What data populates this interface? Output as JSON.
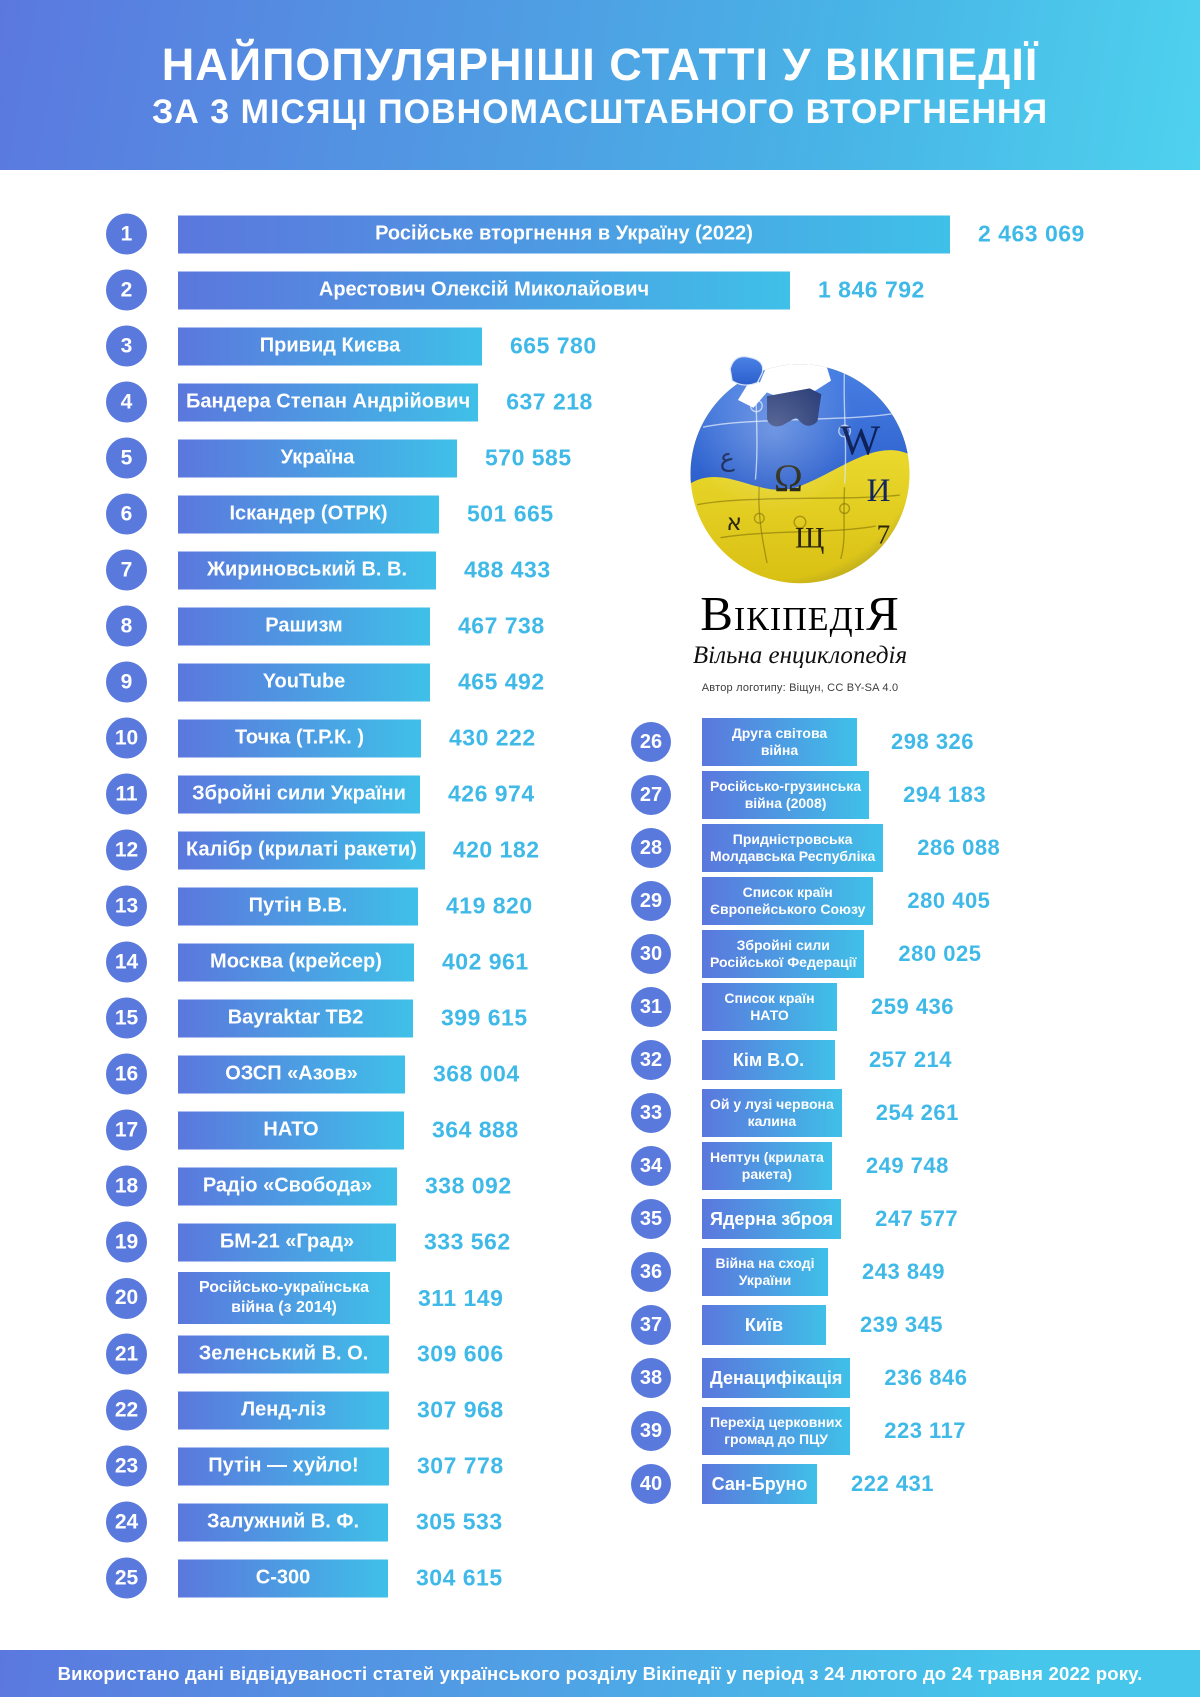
{
  "header": {
    "title_line1": "НАЙПОПУЛЯРНІШІ СТАТТІ У ВІКІПЕДІЇ",
    "title_line2": "ЗА 3 МІСЯЦІ ПОВНОМАСШТАБНОГО ВТОРГНЕННЯ"
  },
  "logo": {
    "wordmark": "ВікіпедіЯ",
    "subtitle": "Вільна енциклопедія",
    "attribution": "Автор логотипу:  Віщун, CC BY-SA 4.0",
    "globe_glyphs": [
      "W",
      "И",
      "Ω",
      "ع",
      "א",
      "Щ",
      "7"
    ],
    "globe_colors": {
      "blue_top": "#3b6ed8",
      "yellow_bottom": "#f0dc2e"
    }
  },
  "colors": {
    "gradient_start": "#5b78df",
    "gradient_end": "#45c6ea",
    "bar_start": "#5b77dd",
    "bar_end": "#3fc0e8",
    "rank_badge": "#5a79dd",
    "value_text": "#3fb9e8",
    "background": "#ffffff"
  },
  "footer": {
    "note": "Використано дані відвідуваності статей українського розділу Вікіпедії у період з 24 лютого до 24 травня 2022 року."
  },
  "chart_data": {
    "type": "bar",
    "title": "НАЙПОПУЛЯРНІШІ СТАТТІ У ВІКІПЕДІЇ ЗА 3 МІСЯЦІ ПОВНОМАСШТАБНОГО ВТОРГНЕННЯ",
    "orientation": "horizontal",
    "value_label_position": "right-of-bar",
    "columns": {
      "left_ranks": [
        1,
        25
      ],
      "right_ranks": [
        26,
        40
      ]
    },
    "items": [
      {
        "rank": 1,
        "label": "Російське вторгнення в Україну (2022)",
        "value": 2463069
      },
      {
        "rank": 2,
        "label": "Арестович Олексій Миколайович",
        "value": 1846792
      },
      {
        "rank": 3,
        "label": "Привид Києва",
        "value": 665780
      },
      {
        "rank": 4,
        "label": "Бандера Степан Андрійович",
        "value": 637218
      },
      {
        "rank": 5,
        "label": "Україна",
        "value": 570585
      },
      {
        "rank": 6,
        "label": "Іскандер (ОТРК)",
        "value": 501665
      },
      {
        "rank": 7,
        "label": "Жириновський В. В.",
        "value": 488433
      },
      {
        "rank": 8,
        "label": "Рашизм",
        "value": 467738
      },
      {
        "rank": 9,
        "label": "YouTube",
        "value": 465492
      },
      {
        "rank": 10,
        "label": "Точка (Т.Р.К. )",
        "value": 430222
      },
      {
        "rank": 11,
        "label": "Збройні сили України",
        "value": 426974
      },
      {
        "rank": 12,
        "label": "Калібр (крилаті ракети)",
        "value": 420182
      },
      {
        "rank": 13,
        "label": "Путін В.В.",
        "value": 419820
      },
      {
        "rank": 14,
        "label": "Москва (крейсер)",
        "value": 402961
      },
      {
        "rank": 15,
        "label": "Bayraktar TB2",
        "value": 399615
      },
      {
        "rank": 16,
        "label": "ОЗСП «Азов»",
        "value": 368004
      },
      {
        "rank": 17,
        "label": "НАТО",
        "value": 364888
      },
      {
        "rank": 18,
        "label": "Радіо «Свобода»",
        "value": 338092
      },
      {
        "rank": 19,
        "label": "БМ-21 «Град»",
        "value": 333562
      },
      {
        "rank": 20,
        "label": "Російсько-українська\nвійна (з 2014)",
        "value": 311149
      },
      {
        "rank": 21,
        "label": "Зеленський В. О.",
        "value": 309606
      },
      {
        "rank": 22,
        "label": "Ленд-ліз",
        "value": 307968
      },
      {
        "rank": 23,
        "label": "Путін — хуйло!",
        "value": 307778
      },
      {
        "rank": 24,
        "label": "Залужний В. Ф.",
        "value": 305533
      },
      {
        "rank": 25,
        "label": "С-300",
        "value": 304615
      },
      {
        "rank": 26,
        "label": "Друга світова\nвійна",
        "value": 298326
      },
      {
        "rank": 27,
        "label": "Російсько-грузинська\nвійна (2008)",
        "value": 294183
      },
      {
        "rank": 28,
        "label": "Придністровська\nМолдавська Республіка",
        "value": 286088
      },
      {
        "rank": 29,
        "label": "Список країн\nЄвропейського Союзу",
        "value": 280405
      },
      {
        "rank": 30,
        "label": "Збройні сили\nРосійської Федерації",
        "value": 280025
      },
      {
        "rank": 31,
        "label": "Список країн\nНАТО",
        "value": 259436
      },
      {
        "rank": 32,
        "label": "Кім В.О.",
        "value": 257214
      },
      {
        "rank": 33,
        "label": "Ой у лузі червона\nкалина",
        "value": 254261
      },
      {
        "rank": 34,
        "label": "Нептун (крилата\nракета)",
        "value": 249748
      },
      {
        "rank": 35,
        "label": "Ядерна зброя",
        "value": 247577
      },
      {
        "rank": 36,
        "label": "Війна на сході\nУкраїни",
        "value": 243849
      },
      {
        "rank": 37,
        "label": "Київ",
        "value": 239345
      },
      {
        "rank": 38,
        "label": "Денацифікація",
        "value": 236846
      },
      {
        "rank": 39,
        "label": "Перехід церковних\nгромад до ПЦУ",
        "value": 223117
      },
      {
        "rank": 40,
        "label": "Сан-Бруно",
        "value": 222431
      }
    ]
  }
}
